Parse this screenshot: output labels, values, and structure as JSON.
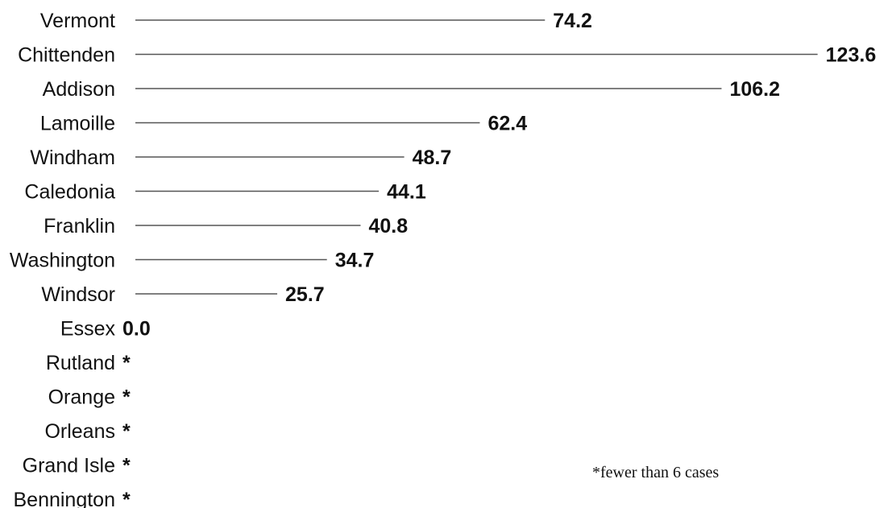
{
  "chart_data": {
    "type": "bar",
    "orientation": "horizontal",
    "style": "lollipop-line",
    "title": "",
    "xlabel": "",
    "ylabel": "",
    "xlim": [
      0,
      123.6
    ],
    "grid": false,
    "categories": [
      "Vermont",
      "Chittenden",
      "Addison",
      "Lamoille",
      "Windham",
      "Caledonia",
      "Franklin",
      "Washington",
      "Windsor",
      "Essex",
      "Rutland",
      "Orange",
      "Orleans",
      "Grand Isle",
      "Bennington"
    ],
    "values": [
      74.2,
      123.6,
      106.2,
      62.4,
      48.7,
      44.1,
      40.8,
      34.7,
      25.7,
      0.0,
      null,
      null,
      null,
      null,
      null
    ],
    "labels": [
      "74.2",
      "123.6",
      "106.2",
      "62.4",
      "48.7",
      "44.1",
      "40.8",
      "34.7",
      "25.7",
      "0.0",
      "*",
      "*",
      "*",
      "*",
      "*"
    ],
    "highlight": "Chittenden",
    "highlight_color": "#E07B12",
    "default_color": "#111111",
    "line_color": "#555555",
    "annotation": "*fewer than 6 cases"
  }
}
